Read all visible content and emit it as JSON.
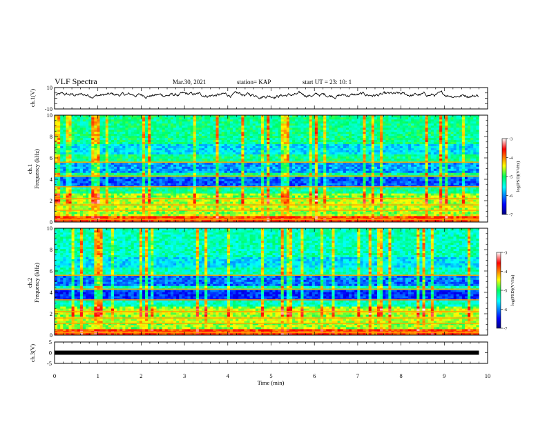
{
  "header": {
    "title": "VLF Spectra",
    "date": "Mar.30, 2021",
    "station": "station= KAP",
    "start": "start  UT  =   23: 10: 1"
  },
  "chart_data": [
    {
      "type": "line",
      "panel": "ch1-waveform",
      "ylabel": "ch.1(V)",
      "xlim": [
        0,
        10
      ],
      "ylim": [
        -10,
        10
      ],
      "yticks": [
        "10",
        "-10"
      ],
      "description_series": "noisy waveform fluctuating mostly between about -2 and 7 V",
      "mean_level_V": 3,
      "amplitude_V": 3.5,
      "end_min": 9.8
    },
    {
      "type": "heatmap",
      "panel": "ch1-spectrogram",
      "ylabel": "ch.1\nFrequency (kHz)",
      "ylabel_top": "ch.1",
      "ylabel_bottom": "Frequency (kHz)",
      "xlim": [
        0,
        10
      ],
      "ylim": [
        0,
        10
      ],
      "yticks": [
        "0",
        "2",
        "4",
        "6",
        "8",
        "10"
      ],
      "data_end_min": 9.8,
      "colorbar": {
        "label": "log(PSD)(V²/Hz)",
        "range": [
          -7,
          -3
        ],
        "ticks": [
          "-3",
          "-4",
          "-5",
          "-6",
          "-7"
        ]
      }
    },
    {
      "type": "heatmap",
      "panel": "ch2-spectrogram",
      "ylabel_top": "ch.2",
      "ylabel_bottom": "Frequency (kHz)",
      "xlim": [
        0,
        10
      ],
      "ylim": [
        0,
        10
      ],
      "yticks": [
        "0",
        "2",
        "4",
        "6",
        "8",
        "10"
      ],
      "data_end_min": 9.8,
      "colorbar": {
        "label": "log(PSD)(V²/Hz)",
        "range": [
          -7,
          -3
        ],
        "ticks": [
          "-3",
          "-4",
          "-5",
          "-6",
          "-7"
        ]
      }
    },
    {
      "type": "line",
      "panel": "ch3-waveform",
      "ylabel": "ch.3(V)",
      "xlim": [
        0,
        10
      ],
      "ylim": [
        -5,
        5
      ],
      "yticks": [
        "5",
        "0",
        "-5"
      ],
      "level_V": 0,
      "end_min": 9.8
    }
  ],
  "xaxis": {
    "label": "Time  (min)",
    "ticks": [
      "0",
      "1",
      "2",
      "3",
      "4",
      "5",
      "6",
      "7",
      "8",
      "9",
      "10"
    ],
    "range": [
      0,
      10
    ]
  },
  "colors": {
    "low": "#0000c8",
    "mid": "#00ff60",
    "high": "#ff0000",
    "line": "#000000"
  }
}
